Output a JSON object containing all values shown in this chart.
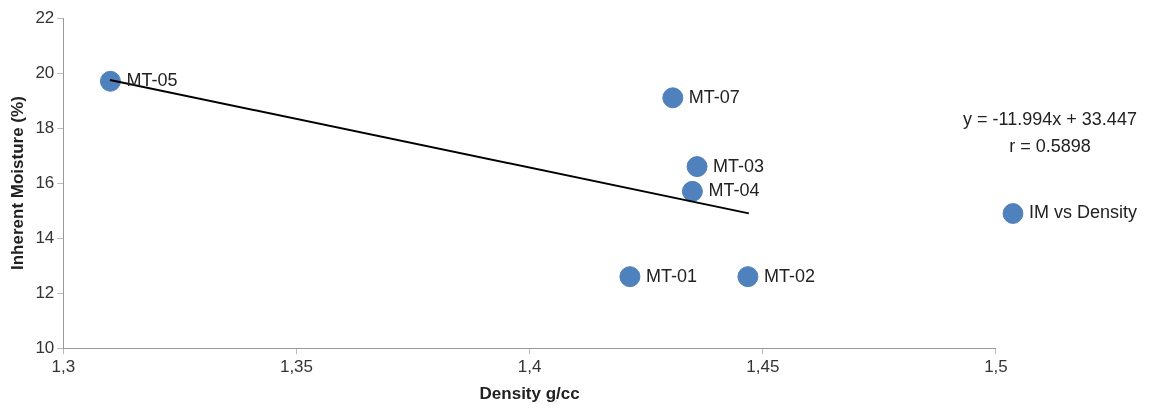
{
  "chart_data": {
    "type": "scatter",
    "xlabel": "Density g/cc",
    "ylabel": "Inherent Moisture (%)",
    "xlim": [
      1.3,
      1.5
    ],
    "xticks": [
      {
        "value": 1.3,
        "label": "1,3"
      },
      {
        "value": 1.35,
        "label": "1,35"
      },
      {
        "value": 1.4,
        "label": "1,4"
      },
      {
        "value": 1.45,
        "label": "1,45"
      },
      {
        "value": 1.5,
        "label": "1,5"
      }
    ],
    "ylim": [
      10,
      22
    ],
    "yticks": [
      10,
      12,
      14,
      16,
      18,
      20,
      22
    ],
    "legend": "right",
    "grid": false,
    "series": [
      {
        "name": "IM vs Density",
        "marker": "circle",
        "color": "#4f81bd",
        "x": [
          1.4215,
          1.4468,
          1.4359,
          1.4349,
          1.3101,
          1.4307
        ],
        "values": [
          12.6,
          12.6,
          16.6,
          15.7,
          19.7,
          19.1
        ]
      },
      {
        "type": "line",
        "marker": "none",
        "color": "#000000",
        "x": [
          1.31,
          1.447
        ],
        "values": [
          19.75,
          14.9
        ]
      }
    ],
    "annotations": [
      {
        "text": "MT-01",
        "x": 1.4215,
        "y": 12.6
      },
      {
        "text": "MT-02",
        "x": 1.4468,
        "y": 12.6
      },
      {
        "text": "MT-03",
        "x": 1.4359,
        "y": 16.6
      },
      {
        "text": "MT-04",
        "x": 1.4349,
        "y": 15.7
      },
      {
        "text": "MT-05",
        "x": 1.3101,
        "y": 19.7
      },
      {
        "text": "MT-07",
        "x": 1.4307,
        "y": 19.1
      },
      "y = -11.994x + 33.447",
      "r = 0.5898"
    ]
  }
}
